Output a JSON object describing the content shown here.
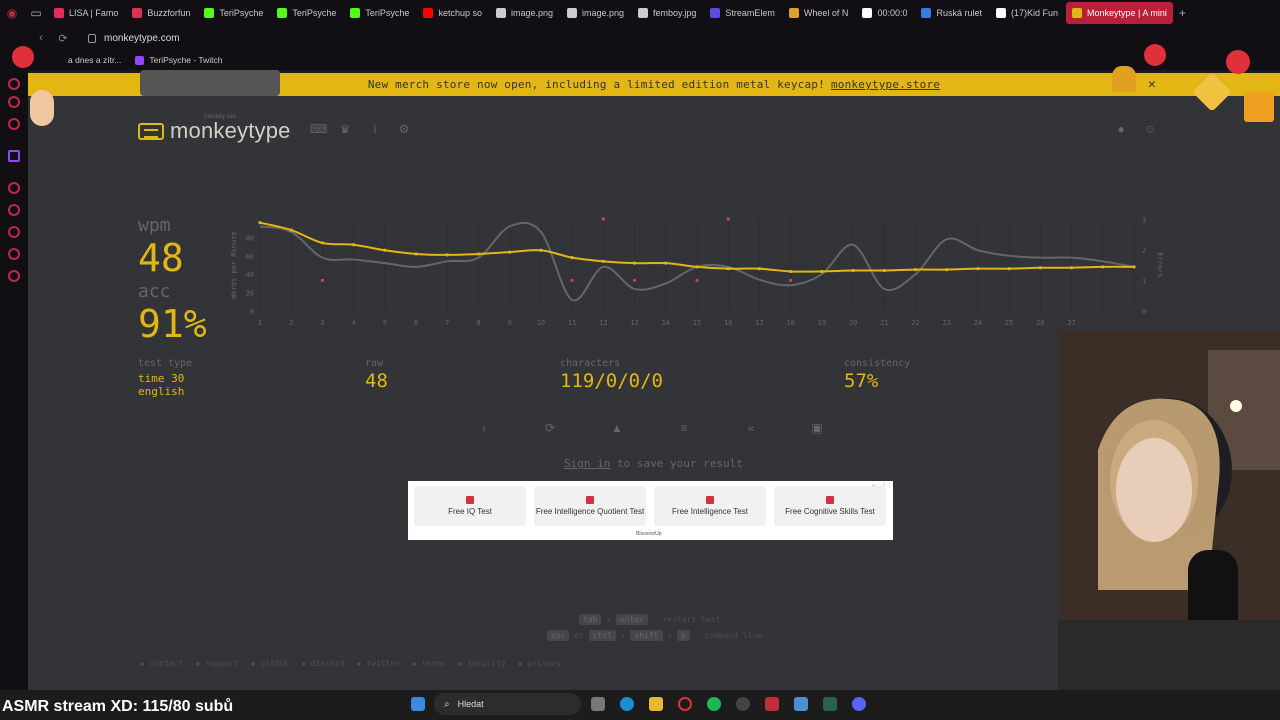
{
  "browser": {
    "tabs": [
      {
        "label": "LISA | Famo",
        "color": "#e0305a"
      },
      {
        "label": "Buzzforfun",
        "color": "#e0305a"
      },
      {
        "label": "TeriPsyche",
        "color": "#53fc18"
      },
      {
        "label": "TeriPsyche",
        "color": "#53fc18"
      },
      {
        "label": "TeriPsyche",
        "color": "#53fc18"
      },
      {
        "label": "ketchup so",
        "color": "#ff0000"
      },
      {
        "label": "image.png",
        "color": "#cccccc"
      },
      {
        "label": "image.png",
        "color": "#cccccc"
      },
      {
        "label": "femboy.jpg",
        "color": "#cccccc"
      },
      {
        "label": "StreamElem",
        "color": "#5a4ce0"
      },
      {
        "label": "Wheel of N",
        "color": "#e0a030"
      },
      {
        "label": "00:00:0",
        "color": "#ffffff"
      },
      {
        "label": "Ruská rulet",
        "color": "#3a7ae0"
      },
      {
        "label": "(17)Kid Fun",
        "color": "#ffffff"
      },
      {
        "label": "Monkeytype | A mini",
        "color": "#e2b714",
        "active": true
      }
    ],
    "url": "monkeytype.com",
    "bookmarks": [
      {
        "label": "a dnes a zítr..."
      },
      {
        "label": "TeriPsyche - Twitch"
      }
    ]
  },
  "banner": {
    "text": "New merch store now open, including a limited edition metal keycap!",
    "link": "monkeytype.store"
  },
  "header": {
    "logo_text": "monkeytype",
    "logo_sub": "monkey see"
  },
  "results": {
    "wpm_label": "wpm",
    "wpm": "48",
    "acc_label": "acc",
    "acc": "91%",
    "test_type_label": "test type",
    "test_type_mode": "time 30",
    "test_type_lang": "english",
    "raw_label": "raw",
    "raw": "48",
    "characters_label": "characters",
    "characters": "119/0/0/0",
    "consistency_label": "consistency",
    "consistency": "57%"
  },
  "chart_data": {
    "type": "line",
    "ylabel": "Words per Minute",
    "y2label": "Errors",
    "x": [
      1,
      2,
      3,
      4,
      5,
      6,
      7,
      8,
      9,
      10,
      11,
      12,
      13,
      14,
      15,
      16,
      17,
      18,
      19,
      20,
      21,
      22,
      23,
      24,
      25,
      26,
      27,
      28,
      29
    ],
    "xticks": [
      "1",
      "2",
      "3",
      "4",
      "5",
      "6",
      "7",
      "8",
      "9",
      "10",
      "11",
      "12",
      "13",
      "14",
      "15",
      "16",
      "17",
      "18",
      "19",
      "20",
      "21",
      "22",
      "23",
      "24",
      "25",
      "26",
      "27"
    ],
    "ylim": [
      0,
      100
    ],
    "yticks": [
      "0",
      "20",
      "40",
      "60",
      "80"
    ],
    "y2lim": [
      0,
      3
    ],
    "y2ticks": [
      "0",
      "1",
      "2",
      "3"
    ],
    "series": [
      {
        "name": "wpm",
        "color": "#e2b714",
        "values": [
          96,
          88,
          74,
          72,
          66,
          62,
          61,
          62,
          64,
          66,
          58,
          54,
          52,
          52,
          48,
          46,
          46,
          43,
          43,
          44,
          44,
          45,
          45,
          46,
          46,
          47,
          47,
          48,
          48
        ]
      },
      {
        "name": "raw",
        "color": "#646669",
        "values": [
          92,
          86,
          58,
          56,
          52,
          48,
          54,
          58,
          92,
          86,
          12,
          48,
          24,
          30,
          48,
          48,
          34,
          28,
          40,
          72,
          24,
          40,
          78,
          66,
          60,
          58,
          58,
          54,
          48
        ]
      },
      {
        "name": "errors",
        "color": "#ca4754",
        "points": [
          [
            3,
            1
          ],
          [
            11,
            1
          ],
          [
            12,
            3
          ],
          [
            13,
            1
          ],
          [
            15,
            1
          ],
          [
            16,
            3
          ],
          [
            18,
            1
          ]
        ]
      }
    ]
  },
  "actions": [
    "next-test",
    "restart",
    "report",
    "words-history",
    "replay",
    "screenshot"
  ],
  "signin": {
    "link": "Sign in",
    "rest": "to save your result"
  },
  "ad": {
    "cards": [
      "Free IQ Test",
      "Free Intelligence Quotient Test",
      "Free Intelligence Test",
      "Free Cognitive Skills Test"
    ],
    "brand": "BlossomUp"
  },
  "hints": {
    "line1": {
      "k1": "tab",
      "plus": "+",
      "k2": "enter",
      "text": "- restart test"
    },
    "line2": {
      "k1": "esc",
      "or": "or",
      "k2": "ctrl",
      "k3": "shift",
      "k4": "p",
      "text": "- command line"
    }
  },
  "footer": [
    "contact",
    "support",
    "github",
    "discord",
    "twitter",
    "terms",
    "security",
    "privacy"
  ],
  "overlay": {
    "text": "ASMR stream XD: 115/80 subů"
  },
  "taskbar": {
    "search_placeholder": "Hledat"
  }
}
